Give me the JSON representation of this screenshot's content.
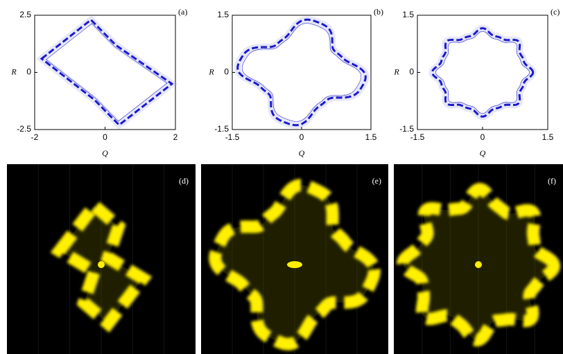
{
  "chart_data": [
    {
      "type": "phase-portrait",
      "panel": "(a)",
      "xlabel": "Q",
      "ylabel": "R",
      "color": "#1a1acc",
      "xlim": [
        -2,
        2
      ],
      "ylim": [
        -2.5,
        2.5
      ],
      "xticks": [
        -2,
        0,
        2
      ],
      "yticks": [
        -2.5,
        0,
        2.5
      ]
    },
    {
      "type": "phase-portrait",
      "panel": "(b)",
      "xlabel": "Q",
      "ylabel": "R",
      "color": "#1a1acc",
      "xlim": [
        -1.5,
        1.5
      ],
      "ylim": [
        -1.5,
        1.5
      ],
      "xticks": [
        -1.5,
        0,
        1.5
      ],
      "yticks": [
        -1.5,
        0,
        1.5
      ]
    },
    {
      "type": "phase-portrait",
      "panel": "(c)",
      "xlabel": "Q",
      "ylabel": "R",
      "color": "#1a1acc",
      "xlim": [
        -1.5,
        1.5
      ],
      "ylim": [
        -1.5,
        1.5
      ],
      "xticks": [
        -1.5,
        0,
        1.5
      ],
      "yticks": [
        -1.5,
        0,
        1.5
      ]
    }
  ],
  "images": [
    {
      "label": "(d)"
    },
    {
      "label": "(e)"
    },
    {
      "label": "(f)"
    }
  ]
}
